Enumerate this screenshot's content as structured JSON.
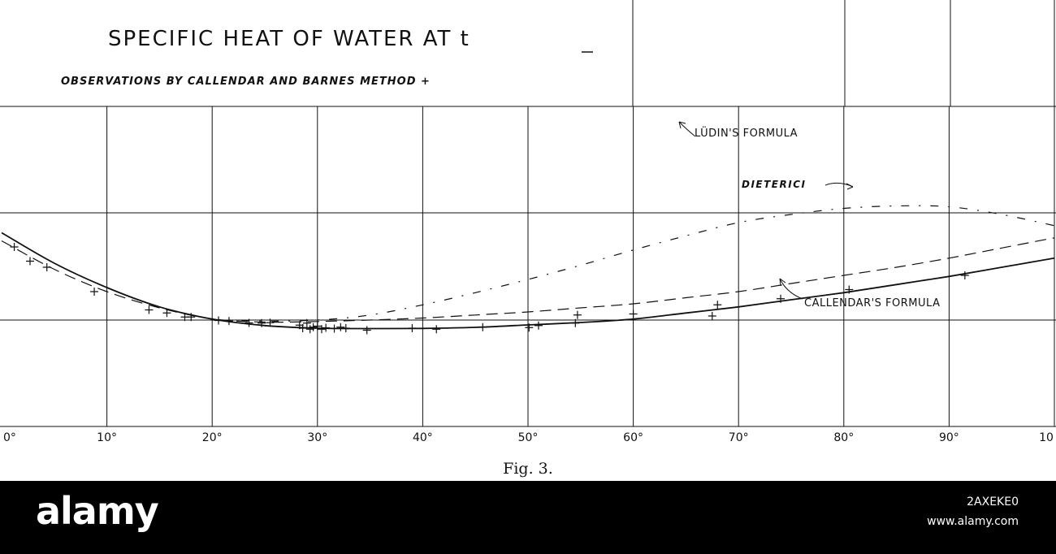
{
  "chart_data": {
    "type": "scatter",
    "title": "SPECIFIC HEAT OF WATER AT t",
    "subtitle": "OBSERVATIONS BY CALLENDAR AND BARNES METHOD +",
    "xlim": [
      0,
      100
    ],
    "x_ticks": [
      "0°",
      "10°",
      "20°",
      "30°",
      "40°",
      "50°",
      "60°",
      "70°",
      "80°",
      "90°",
      "10"
    ],
    "caption": "Fig. 3.",
    "grid": true,
    "series": [
      {
        "name": "CALLENDAR'S FORMULA",
        "style": "solid",
        "x": [
          0,
          5,
          10,
          15,
          20,
          25,
          30,
          35,
          40,
          45,
          50,
          55,
          60,
          65,
          70,
          75,
          80,
          85,
          90,
          95,
          100
        ],
        "y": [
          6.3,
          4.8,
          3.6,
          2.65,
          2.05,
          1.73,
          1.6,
          1.58,
          1.59,
          1.64,
          1.76,
          1.88,
          2.05,
          2.35,
          2.65,
          3.0,
          3.35,
          3.75,
          4.15,
          4.6,
          5.05
        ]
      },
      {
        "name": "DIETERICI",
        "style": "dashed",
        "x": [
          0,
          5,
          10,
          15,
          20,
          25,
          30,
          35,
          40,
          45,
          50,
          55,
          60,
          65,
          70,
          75,
          80,
          85,
          90,
          95,
          100
        ],
        "y": [
          5.9,
          4.5,
          3.4,
          2.6,
          2.06,
          1.9,
          1.93,
          2.0,
          2.1,
          2.25,
          2.4,
          2.6,
          2.8,
          3.1,
          3.4,
          3.8,
          4.2,
          4.6,
          5.05,
          5.55,
          6.05
        ]
      },
      {
        "name": "LÜDIN'S FORMULA",
        "style": "dash-dot",
        "x": [
          20,
          25,
          30,
          35,
          40,
          45,
          50,
          55,
          60,
          65,
          70,
          75,
          80,
          85,
          90,
          95,
          100
        ],
        "y": [
          2.0,
          1.95,
          2.0,
          2.25,
          2.75,
          3.35,
          4.0,
          4.7,
          5.45,
          6.15,
          6.8,
          7.2,
          7.5,
          7.62,
          7.58,
          7.2,
          6.65
        ]
      },
      {
        "name": "OBSERVATIONS",
        "style": "plus",
        "x": [
          1.2,
          2.7,
          4.3,
          8.8,
          14,
          15.7,
          17.4,
          18,
          20.6,
          21.6,
          23.5,
          24.7,
          25.5,
          28.3,
          28.6,
          29,
          29.3,
          29.6,
          30,
          30.4,
          30.8,
          31.6,
          32.2,
          32.7,
          34.7,
          39,
          41.3,
          45.7,
          50.1,
          51,
          54.5,
          54.7,
          60,
          67.5,
          68,
          74,
          80.5,
          91.5
        ],
        "y": [
          5.6,
          4.9,
          4.6,
          3.4,
          2.5,
          2.35,
          2.15,
          2.15,
          1.98,
          1.95,
          1.86,
          1.85,
          1.87,
          1.75,
          1.6,
          1.85,
          1.55,
          1.65,
          1.7,
          1.55,
          1.62,
          1.58,
          1.65,
          1.6,
          1.5,
          1.6,
          1.55,
          1.65,
          1.63,
          1.73,
          1.85,
          2.25,
          2.3,
          2.2,
          2.75,
          3.05,
          3.5,
          4.2
        ]
      }
    ]
  },
  "footer": {
    "brand": "alamy",
    "image_id": "2AXEKE0",
    "site": "www.alamy.com"
  }
}
